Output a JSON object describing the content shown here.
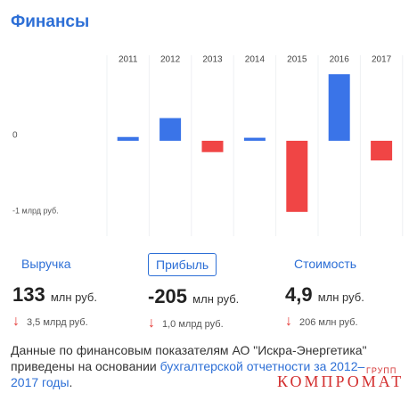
{
  "header": {
    "title": "Финансы"
  },
  "chart_data": {
    "type": "bar",
    "categories": [
      "2011",
      "2012",
      "2013",
      "2014",
      "2015",
      "2016",
      "2017"
    ],
    "values": [
      0.05,
      0.3,
      -0.15,
      0.04,
      -0.94,
      0.88,
      -0.26
    ],
    "positive_color": "#3a74e8",
    "negative_color": "#f04545",
    "ylim": [
      -1.26,
      1.13
    ],
    "yticks": [
      {
        "value": -1,
        "label": "-1 млрд руб."
      },
      0
    ]
  },
  "metrics": [
    {
      "name": "Выручка",
      "value": "133",
      "unit": "млн руб.",
      "change": "3,5 млрд руб."
    },
    {
      "name": "Прибыль",
      "value": "-205",
      "unit": "млн руб.",
      "change": "1,0 млрд руб."
    },
    {
      "name": "Стоимость",
      "value": "4,9",
      "unit": "млн руб.",
      "change": "206 млн руб."
    }
  ],
  "note": {
    "text": "Данные по финансовым показателям АО \"Искра-Энергетика\" приведены на основании ",
    "link": "бухгалтерской отчетности за 2012–2017 годы",
    "end": "."
  },
  "watermark": {
    "main": "КОМПРОМАТ",
    "small": "ГРУПП"
  }
}
